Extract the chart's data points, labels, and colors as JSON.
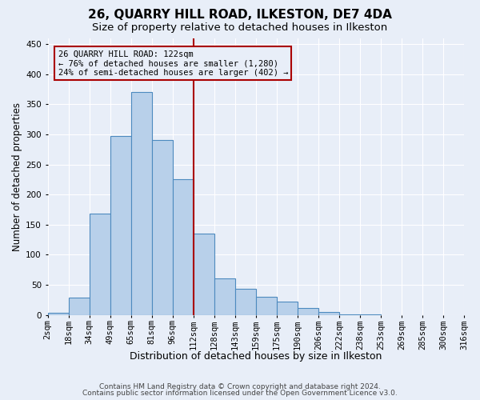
{
  "title": "26, QUARRY HILL ROAD, ILKESTON, DE7 4DA",
  "subtitle": "Size of property relative to detached houses in Ilkeston",
  "xlabel": "Distribution of detached houses by size in Ilkeston",
  "ylabel": "Number of detached properties",
  "categories": [
    "2sqm",
    "18sqm",
    "34sqm",
    "49sqm",
    "65sqm",
    "81sqm",
    "96sqm",
    "112sqm",
    "128sqm",
    "143sqm",
    "159sqm",
    "175sqm",
    "190sqm",
    "206sqm",
    "222sqm",
    "238sqm",
    "253sqm",
    "269sqm",
    "285sqm",
    "300sqm",
    "316sqm"
  ],
  "heights": [
    3,
    29,
    29,
    168,
    168,
    297,
    370,
    291,
    226,
    226,
    135,
    135,
    61,
    44,
    44,
    30,
    30,
    22,
    11,
    11,
    5,
    5,
    1
  ],
  "bar_heights": [
    3,
    29,
    168,
    297,
    370,
    291,
    226,
    135,
    61,
    44,
    30,
    22,
    11,
    5,
    1
  ],
  "actual_bar_heights": [
    3,
    29,
    168,
    297,
    370,
    291,
    226,
    135,
    61,
    44,
    30,
    22,
    11,
    5,
    1
  ],
  "bar_color": "#b8d0ea",
  "bar_edge_color": "#4d8abf",
  "annotation_title": "26 QUARRY HILL ROAD: 122sqm",
  "annotation_line1": "← 76% of detached houses are smaller (1,280)",
  "annotation_line2": "24% of semi-detached houses are larger (402) →",
  "annotation_color": "#aa0000",
  "vline_color": "#aa0000",
  "ylim": [
    0,
    460
  ],
  "yticks": [
    0,
    50,
    100,
    150,
    200,
    250,
    300,
    350,
    400,
    450
  ],
  "bg_color": "#e8eef8",
  "grid_color": "#ffffff",
  "title_fontsize": 11,
  "subtitle_fontsize": 9.5,
  "xlabel_fontsize": 9,
  "ylabel_fontsize": 8.5,
  "tick_fontsize": 7.5,
  "footer_fontsize": 6.5,
  "footer1": "Contains HM Land Registry data © Crown copyright and database right 2024.",
  "footer2": "Contains public sector information licensed under the Open Government Licence v3.0."
}
